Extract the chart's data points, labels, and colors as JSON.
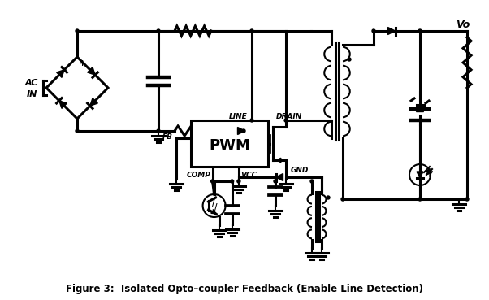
{
  "title": "Figure 3:  Isolated Opto–coupler Feedback (Enable Line Detection)",
  "background_color": "#ffffff",
  "line_color": "#000000",
  "lw": 1.5,
  "blw": 2.2,
  "fig_width": 6.02,
  "fig_height": 3.69,
  "dpi": 100,
  "labels": {
    "AC_IN": "AC\nIN",
    "LINE": "LINE",
    "DRAIN": "DRAIN",
    "GND": "GND",
    "FB": "FB",
    "COMP": "COMP",
    "VCC": "VCC",
    "PWM": "PWM",
    "Vo": "Vo"
  }
}
